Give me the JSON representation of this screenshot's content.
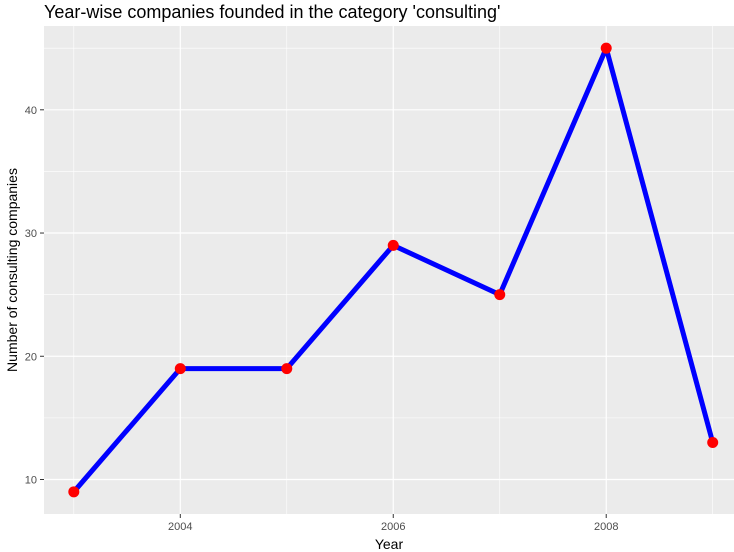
{
  "chart_data": {
    "type": "line",
    "title": "Year-wise companies founded in the category 'consulting'",
    "xlabel": "Year",
    "ylabel": "Number of consulting companies",
    "x": [
      2003,
      2004,
      2005,
      2006,
      2007,
      2008,
      2009
    ],
    "series": [
      {
        "values": [
          9,
          19,
          19,
          29,
          25,
          45,
          13
        ]
      }
    ],
    "x_ticks": [
      2004,
      2006,
      2008
    ],
    "y_ticks": [
      10,
      20,
      30,
      40
    ],
    "xlim": [
      2002.72,
      2009.2
    ],
    "ylim": [
      7.2,
      46.8
    ],
    "grid": true,
    "colors": {
      "line": "#0000ff",
      "points": "#ff0000",
      "panel": "#ebebeb",
      "grid": "#ffffff"
    }
  }
}
